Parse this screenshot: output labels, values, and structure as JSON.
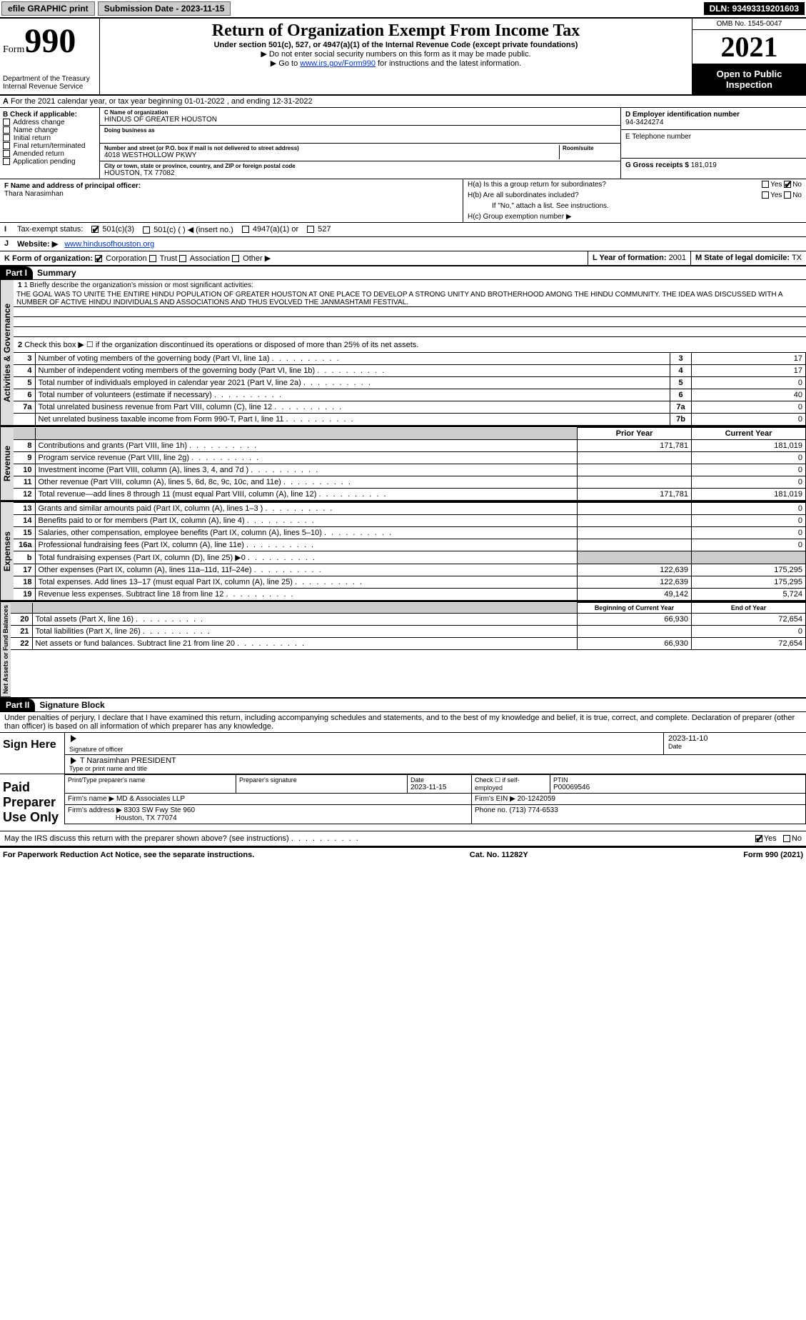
{
  "topbar": {
    "efile": "efile GRAPHIC print",
    "submission": "Submission Date - 2023-11-15",
    "dln": "DLN: 93493319201603"
  },
  "header": {
    "form_label": "Form",
    "form_num": "990",
    "dept": "Department of the Treasury",
    "irs": "Internal Revenue Service",
    "title": "Return of Organization Exempt From Income Tax",
    "subtitle": "Under section 501(c), 527, or 4947(a)(1) of the Internal Revenue Code (except private foundations)",
    "note1": "▶ Do not enter social security numbers on this form as it may be made public.",
    "note2_pre": "▶ Go to ",
    "note2_link": "www.irs.gov/Form990",
    "note2_post": " for instructions and the latest information.",
    "omb": "OMB No. 1545-0047",
    "year": "2021",
    "inspect": "Open to Public Inspection"
  },
  "line_a": "For the 2021 calendar year, or tax year beginning 01-01-2022   , and ending 12-31-2022",
  "box_b": {
    "title": "B Check if applicable:",
    "items": [
      "Address change",
      "Name change",
      "Initial return",
      "Final return/terminated",
      "Amended return",
      "Application pending"
    ]
  },
  "box_c": {
    "name_lab": "C Name of organization",
    "name": "HINDUS OF GREATER HOUSTON",
    "dba_lab": "Doing business as",
    "addr_lab": "Number and street (or P.O. box if mail is not delivered to street address)",
    "room_lab": "Room/suite",
    "addr": "4018 WESTHOLLOW PKWY",
    "city_lab": "City or town, state or province, country, and ZIP or foreign postal code",
    "city": "HOUSTON, TX  77082"
  },
  "box_d": {
    "lab": "D Employer identification number",
    "val": "94-3424274"
  },
  "box_e": {
    "lab": "E Telephone number",
    "val": ""
  },
  "box_g": {
    "lab": "G Gross receipts $",
    "val": "181,019"
  },
  "box_f": {
    "lab": "F  Name and address of principal officer:",
    "val": "Thara Narasimhan"
  },
  "box_h": {
    "a_lab": "H(a)  Is this a group return for subordinates?",
    "b_lab": "H(b)  Are all subordinates included?",
    "b_note": "If \"No,\" attach a list. See instructions.",
    "c_lab": "H(c)  Group exemption number ▶",
    "yes": "Yes",
    "no": "No"
  },
  "row_i": {
    "lab": "Tax-exempt status:",
    "o1": "501(c)(3)",
    "o2": "501(c) (   ) ◀ (insert no.)",
    "o3": "4947(a)(1) or",
    "o4": "527"
  },
  "row_j": {
    "lab": "Website: ▶",
    "val": "www.hindusofhouston.org"
  },
  "row_k": {
    "lab": "K Form of organization:",
    "o1": "Corporation",
    "o2": "Trust",
    "o3": "Association",
    "o4": "Other ▶"
  },
  "row_l": {
    "lab": "L Year of formation:",
    "val": "2001"
  },
  "row_m": {
    "lab": "M State of legal domicile:",
    "val": "TX"
  },
  "part1": {
    "hdr": "Part I",
    "title": "Summary",
    "tab_ag": "Activities & Governance",
    "tab_rev": "Revenue",
    "tab_exp": "Expenses",
    "tab_na": "Net Assets or Fund Balances",
    "l1_lab": "1  Briefly describe the organization's mission or most significant activities:",
    "l1_text": "THE GOAL WAS TO UNITE THE ENTIRE HINDU POPULATION OF GREATER HOUSTON AT ONE PLACE TO DEVELOP A STRONG UNITY AND BROTHERHOOD AMONG THE HINDU COMMUNITY. THE IDEA WAS DISCUSSED WITH A NUMBER OF ACTIVE HINDU INDIVIDUALS AND ASSOCIATIONS AND THUS EVOLVED THE JANMASHTAMI FESTIVAL.",
    "l2": "Check this box ▶ ☐  if the organization discontinued its operations or disposed of more than 25% of its net assets.",
    "prior_hdr": "Prior Year",
    "curr_hdr": "Current Year",
    "beg_hdr": "Beginning of Current Year",
    "end_hdr": "End of Year",
    "rows_ag": [
      {
        "n": "3",
        "d": "Number of voting members of the governing body (Part VI, line 1a)",
        "b": "3",
        "v": "17"
      },
      {
        "n": "4",
        "d": "Number of independent voting members of the governing body (Part VI, line 1b)",
        "b": "4",
        "v": "17"
      },
      {
        "n": "5",
        "d": "Total number of individuals employed in calendar year 2021 (Part V, line 2a)",
        "b": "5",
        "v": "0"
      },
      {
        "n": "6",
        "d": "Total number of volunteers (estimate if necessary)",
        "b": "6",
        "v": "40"
      },
      {
        "n": "7a",
        "d": "Total unrelated business revenue from Part VIII, column (C), line 12",
        "b": "7a",
        "v": "0"
      },
      {
        "n": "",
        "d": "Net unrelated business taxable income from Form 990-T, Part I, line 11",
        "b": "7b",
        "v": "0"
      }
    ],
    "rows_rev": [
      {
        "n": "8",
        "d": "Contributions and grants (Part VIII, line 1h)",
        "p": "171,781",
        "c": "181,019"
      },
      {
        "n": "9",
        "d": "Program service revenue (Part VIII, line 2g)",
        "p": "",
        "c": "0"
      },
      {
        "n": "10",
        "d": "Investment income (Part VIII, column (A), lines 3, 4, and 7d )",
        "p": "",
        "c": "0"
      },
      {
        "n": "11",
        "d": "Other revenue (Part VIII, column (A), lines 5, 6d, 8c, 9c, 10c, and 11e)",
        "p": "",
        "c": "0"
      },
      {
        "n": "12",
        "d": "Total revenue—add lines 8 through 11 (must equal Part VIII, column (A), line 12)",
        "p": "171,781",
        "c": "181,019"
      }
    ],
    "rows_exp": [
      {
        "n": "13",
        "d": "Grants and similar amounts paid (Part IX, column (A), lines 1–3 )",
        "p": "",
        "c": "0"
      },
      {
        "n": "14",
        "d": "Benefits paid to or for members (Part IX, column (A), line 4)",
        "p": "",
        "c": "0"
      },
      {
        "n": "15",
        "d": "Salaries, other compensation, employee benefits (Part IX, column (A), lines 5–10)",
        "p": "",
        "c": "0"
      },
      {
        "n": "16a",
        "d": "Professional fundraising fees (Part IX, column (A), line 11e)",
        "p": "",
        "c": "0"
      },
      {
        "n": "b",
        "d": "Total fundraising expenses (Part IX, column (D), line 25) ▶0",
        "p": "shade",
        "c": "shade"
      },
      {
        "n": "17",
        "d": "Other expenses (Part IX, column (A), lines 11a–11d, 11f–24e)",
        "p": "122,639",
        "c": "175,295"
      },
      {
        "n": "18",
        "d": "Total expenses. Add lines 13–17 (must equal Part IX, column (A), line 25)",
        "p": "122,639",
        "c": "175,295"
      },
      {
        "n": "19",
        "d": "Revenue less expenses. Subtract line 18 from line 12",
        "p": "49,142",
        "c": "5,724"
      }
    ],
    "rows_na": [
      {
        "n": "20",
        "d": "Total assets (Part X, line 16)",
        "p": "66,930",
        "c": "72,654"
      },
      {
        "n": "21",
        "d": "Total liabilities (Part X, line 26)",
        "p": "",
        "c": "0"
      },
      {
        "n": "22",
        "d": "Net assets or fund balances. Subtract line 21 from line 20",
        "p": "66,930",
        "c": "72,654"
      }
    ]
  },
  "part2": {
    "hdr": "Part II",
    "title": "Signature Block",
    "perjury": "Under penalties of perjury, I declare that I have examined this return, including accompanying schedules and statements, and to the best of my knowledge and belief, it is true, correct, and complete. Declaration of preparer (other than officer) is based on all information of which preparer has any knowledge.",
    "sign_here": "Sign Here",
    "sig_officer": "Signature of officer",
    "sig_date": "Date",
    "sig_date_val": "2023-11-10",
    "sig_name": "T Narasimhan PRESIDENT",
    "sig_name_lab": "Type or print name and title",
    "paid": "Paid Preparer Use Only",
    "prep_name_lab": "Print/Type preparer's name",
    "prep_sig_lab": "Preparer's signature",
    "prep_date_lab": "Date",
    "prep_date": "2023-11-15",
    "prep_check": "Check ☐ if self-employed",
    "ptin_lab": "PTIN",
    "ptin": "P00069546",
    "firm_name_lab": "Firm's name    ▶",
    "firm_name": "MD & Associates LLP",
    "firm_ein_lab": "Firm's EIN ▶",
    "firm_ein": "20-1242059",
    "firm_addr_lab": "Firm's address ▶",
    "firm_addr1": "8303 SW Fwy Ste 960",
    "firm_addr2": "Houston, TX  77074",
    "firm_phone_lab": "Phone no.",
    "firm_phone": "(713) 774-6533",
    "discuss": "May the IRS discuss this return with the preparer shown above? (see instructions)",
    "yes": "Yes",
    "no": "No"
  },
  "footer": {
    "l": "For Paperwork Reduction Act Notice, see the separate instructions.",
    "m": "Cat. No. 11282Y",
    "r": "Form 990 (2021)"
  }
}
